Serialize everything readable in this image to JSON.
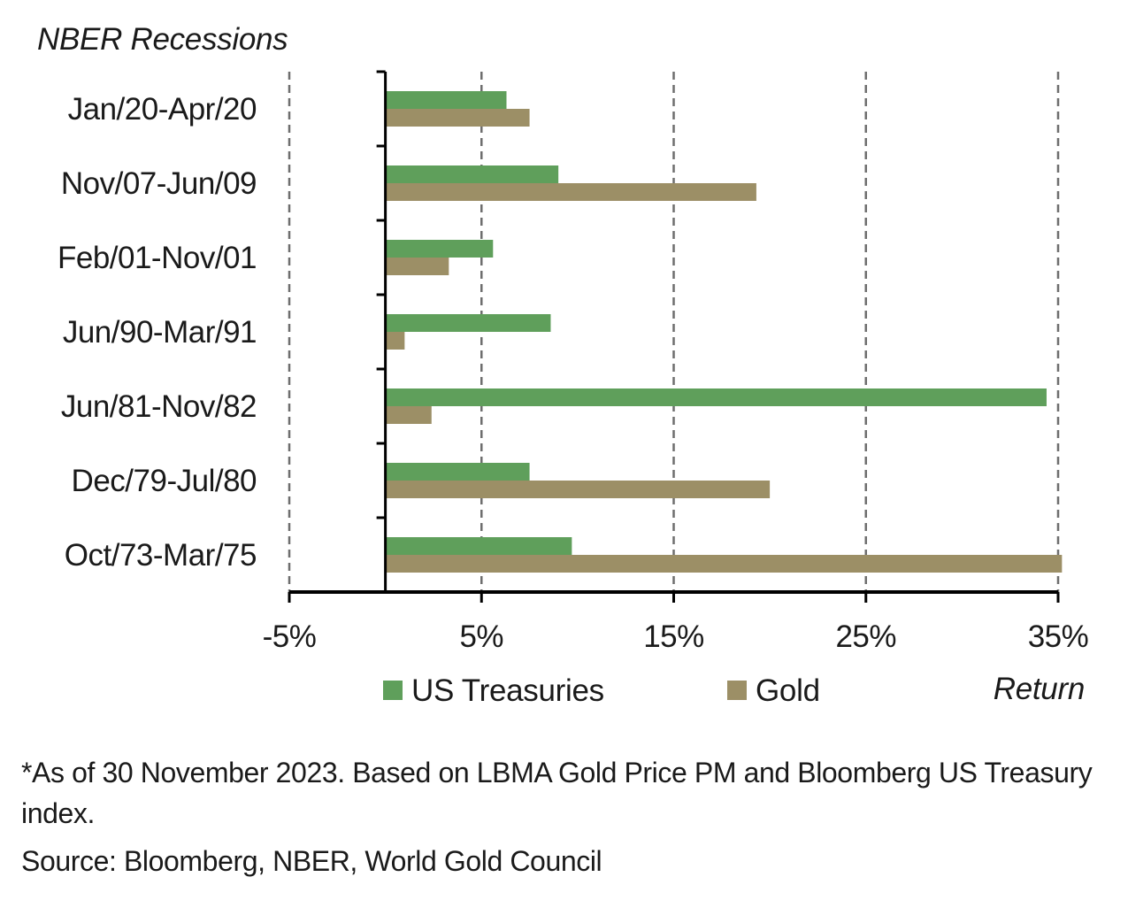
{
  "chart_data": {
    "type": "bar",
    "orientation": "horizontal",
    "title": "NBER Recessions",
    "xlabel": "Return",
    "ylabel": "NBER Recessions",
    "categories": [
      "Jan/20-Apr/20",
      "Nov/07-Jun/09",
      "Feb/01-Nov/01",
      "Jun/90-Mar/91",
      "Jun/81-Nov/82",
      "Dec/79-Jul/80",
      "Oct/73-Mar/75"
    ],
    "series": [
      {
        "name": "US Treasuries",
        "color": "#5f9f5b",
        "values": [
          6.3,
          9.0,
          5.6,
          8.6,
          34.4,
          7.5,
          9.7
        ]
      },
      {
        "name": "Gold",
        "color": "#9c8f66",
        "values": [
          7.5,
          19.3,
          3.3,
          1.0,
          2.4,
          20.0,
          35.2
        ]
      }
    ],
    "xlim": [
      -5,
      35
    ],
    "xticks": [
      -5,
      5,
      15,
      25,
      35
    ],
    "xtick_labels": [
      "-5%",
      "5%",
      "15%",
      "25%",
      "35%"
    ],
    "units": "%",
    "grid": "vertical dashed",
    "legend_position": "bottom"
  },
  "footnotes": {
    "note": "*As of 30 November 2023. Based on LBMA Gold Price PM and Bloomberg US Treasury index.",
    "source": "Source: Bloomberg, NBER, World Gold Council"
  }
}
